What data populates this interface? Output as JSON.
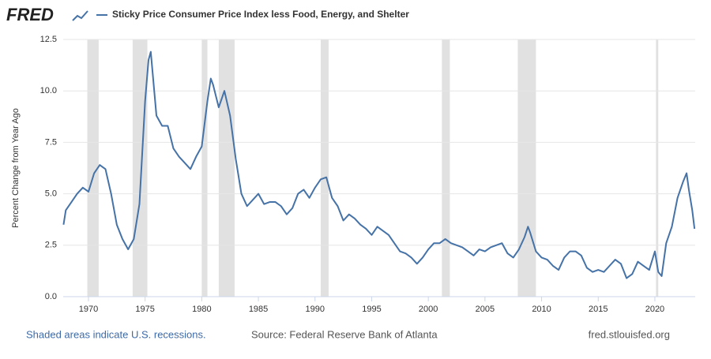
{
  "logo": "FRED",
  "chart_data": {
    "type": "line",
    "y_label": "Percent Change from Year Ago",
    "notes": [
      "Shaded areas indicate U.S. recessions.",
      "Source: Federal Reserve Bank of Atlanta",
      "fred.stlouisfed.org"
    ],
    "xlim": [
      1967.77,
      2023.56
    ],
    "xticks": [
      1970,
      1975,
      1980,
      1985,
      1990,
      1995,
      2000,
      2005,
      2010,
      2015,
      2020
    ],
    "ylim": [
      0,
      12.5
    ],
    "yticks": [
      {
        "value": 0,
        "label": "0.0"
      },
      2.5,
      {
        "value": 5,
        "label": "5.0"
      },
      7.5,
      {
        "value": 10,
        "label": "10.0"
      },
      12.5
    ],
    "grid": true,
    "recession_color": "#e1e1e1",
    "recessions": [
      [
        1969.9,
        1970.9
      ],
      [
        1973.9,
        1975.2
      ],
      [
        1980.0,
        1980.5
      ],
      [
        1981.5,
        1982.9
      ],
      [
        1990.5,
        1991.2
      ],
      [
        2001.2,
        2001.9
      ],
      [
        2007.9,
        2009.5
      ],
      [
        2020.1,
        2020.3
      ]
    ],
    "x": [
      1967.8,
      1968.0,
      1968.5,
      1969.0,
      1969.5,
      1970.0,
      1970.5,
      1971.0,
      1971.5,
      1972.0,
      1972.5,
      1973.0,
      1973.5,
      1974.0,
      1974.5,
      1975.0,
      1975.3,
      1975.5,
      1976.0,
      1976.5,
      1977.0,
      1977.5,
      1978.0,
      1978.5,
      1979.0,
      1979.5,
      1980.0,
      1980.5,
      1980.8,
      1981.0,
      1981.5,
      1982.0,
      1982.5,
      1983.0,
      1983.5,
      1984.0,
      1984.5,
      1985.0,
      1985.5,
      1986.0,
      1986.5,
      1987.0,
      1987.5,
      1988.0,
      1988.5,
      1989.0,
      1989.5,
      1990.0,
      1990.5,
      1991.0,
      1991.5,
      1992.0,
      1992.5,
      1993.0,
      1993.5,
      1994.0,
      1994.5,
      1995.0,
      1995.5,
      1996.0,
      1996.5,
      1997.0,
      1997.5,
      1998.0,
      1998.5,
      1999.0,
      1999.5,
      2000.0,
      2000.5,
      2001.0,
      2001.5,
      2002.0,
      2002.5,
      2003.0,
      2003.5,
      2004.0,
      2004.5,
      2005.0,
      2005.5,
      2006.0,
      2006.5,
      2007.0,
      2007.5,
      2008.0,
      2008.5,
      2008.8,
      2009.0,
      2009.5,
      2010.0,
      2010.5,
      2011.0,
      2011.5,
      2012.0,
      2012.5,
      2013.0,
      2013.5,
      2014.0,
      2014.5,
      2015.0,
      2015.5,
      2016.0,
      2016.5,
      2017.0,
      2017.5,
      2018.0,
      2018.5,
      2019.0,
      2019.5,
      2020.0,
      2020.3,
      2020.6,
      2021.0,
      2021.5,
      2022.0,
      2022.5,
      2022.8,
      2023.0,
      2023.3,
      2023.5
    ],
    "series": [
      {
        "name": "Sticky Price Consumer Price Index less Food, Energy, and Shelter",
        "color": "#4572a7",
        "values": [
          3.5,
          4.2,
          4.6,
          5.0,
          5.3,
          5.1,
          6.0,
          6.4,
          6.2,
          5.0,
          3.5,
          2.8,
          2.3,
          2.8,
          4.5,
          9.5,
          11.5,
          11.9,
          8.8,
          8.3,
          8.3,
          7.2,
          6.8,
          6.5,
          6.2,
          6.8,
          7.3,
          9.5,
          10.6,
          10.3,
          9.2,
          10.0,
          8.8,
          6.7,
          5.0,
          4.4,
          4.7,
          5.0,
          4.5,
          4.6,
          4.6,
          4.4,
          4.0,
          4.3,
          5.0,
          5.2,
          4.8,
          5.3,
          5.7,
          5.8,
          4.8,
          4.4,
          3.7,
          4.0,
          3.8,
          3.5,
          3.3,
          3.0,
          3.4,
          3.2,
          3.0,
          2.6,
          2.2,
          2.1,
          1.9,
          1.6,
          1.9,
          2.3,
          2.6,
          2.6,
          2.8,
          2.6,
          2.5,
          2.4,
          2.2,
          2.0,
          2.3,
          2.2,
          2.4,
          2.5,
          2.6,
          2.1,
          1.9,
          2.3,
          2.9,
          3.4,
          3.1,
          2.2,
          1.9,
          1.8,
          1.5,
          1.3,
          1.9,
          2.2,
          2.2,
          2.0,
          1.4,
          1.2,
          1.3,
          1.2,
          1.5,
          1.8,
          1.6,
          0.9,
          1.1,
          1.7,
          1.5,
          1.3,
          2.2,
          1.2,
          1.0,
          2.6,
          3.4,
          4.8,
          5.6,
          6.0,
          5.2,
          4.2,
          3.3
        ]
      }
    ]
  }
}
